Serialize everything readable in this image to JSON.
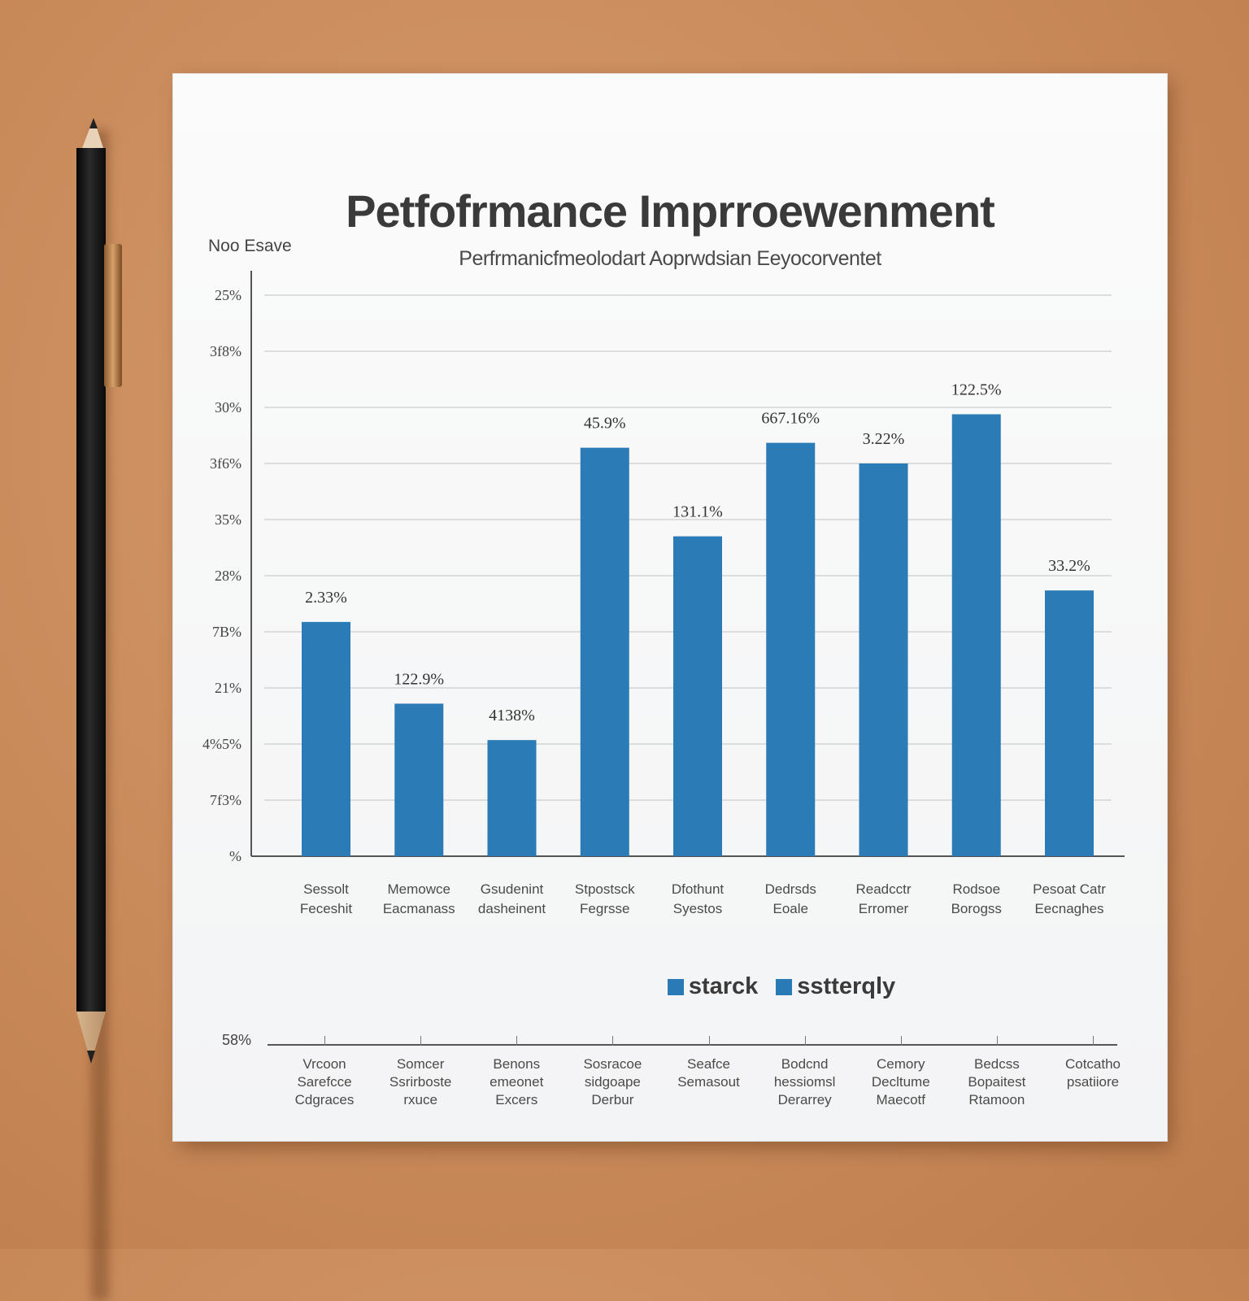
{
  "chart_data": {
    "type": "bar",
    "title": "Petfofrmance Imprroewenment",
    "subtitle": "Perfrmanicfmeolodart Aoprwdsian Eeyocorventet",
    "ylabel": "Noo Esave",
    "y_tick_labels": [
      "%",
      "7f3%",
      "4%5%",
      "21%",
      "7B%",
      "28%",
      "35%",
      "3f6%",
      "30%",
      "3f8%",
      "25%"
    ],
    "categories": [
      "Sessolt\nFeceshit",
      "Memowce\nEacmanass",
      "Gsudenint\ndasheinent",
      "Stpostsck\nFegrsse",
      "Dfothunt\nSyestos",
      "Dedrsds\nEoale",
      "Readcctr\nErromer",
      "Rodsoe\nBorogss",
      "Pesoat Catr\nEecnaghes"
    ],
    "values": [
      23.8,
      15.5,
      11.8,
      41.5,
      32.5,
      42.0,
      39.9,
      44.9,
      27.0
    ],
    "data_labels": [
      "2.33%",
      "122.9%",
      "4138%",
      "45.9%",
      "131.1%",
      "667.16%",
      "3.22%",
      "122.5%",
      "33.2%"
    ],
    "ylim": [
      0,
      57
    ],
    "grid": true,
    "legend": {
      "placement": "bottom-center",
      "entries": [
        {
          "label": "starck",
          "color": "#2a7ab5"
        },
        {
          "label": "sstterqly",
          "color": "#2a7ab5"
        }
      ]
    },
    "bar_color": "#2b7bb6"
  },
  "lower_axis": {
    "value_label": "58%",
    "labels": [
      "Vrcoon\nSarefcce\nCdgraces",
      "Somcer\nSsrirboste\nrxuce",
      "Benons\nemeonet\nExcers",
      "Sosracoe\nsidgoape\nDerbur",
      "Seafce\nSemasout",
      "Bodcnd\nhessiomsl\nDerarrey",
      "Cemory\nDecltume\nMaecotf",
      "Bedcss\nBopaitest\nRtamoon",
      "Cotcatho\npsatiiore"
    ]
  }
}
